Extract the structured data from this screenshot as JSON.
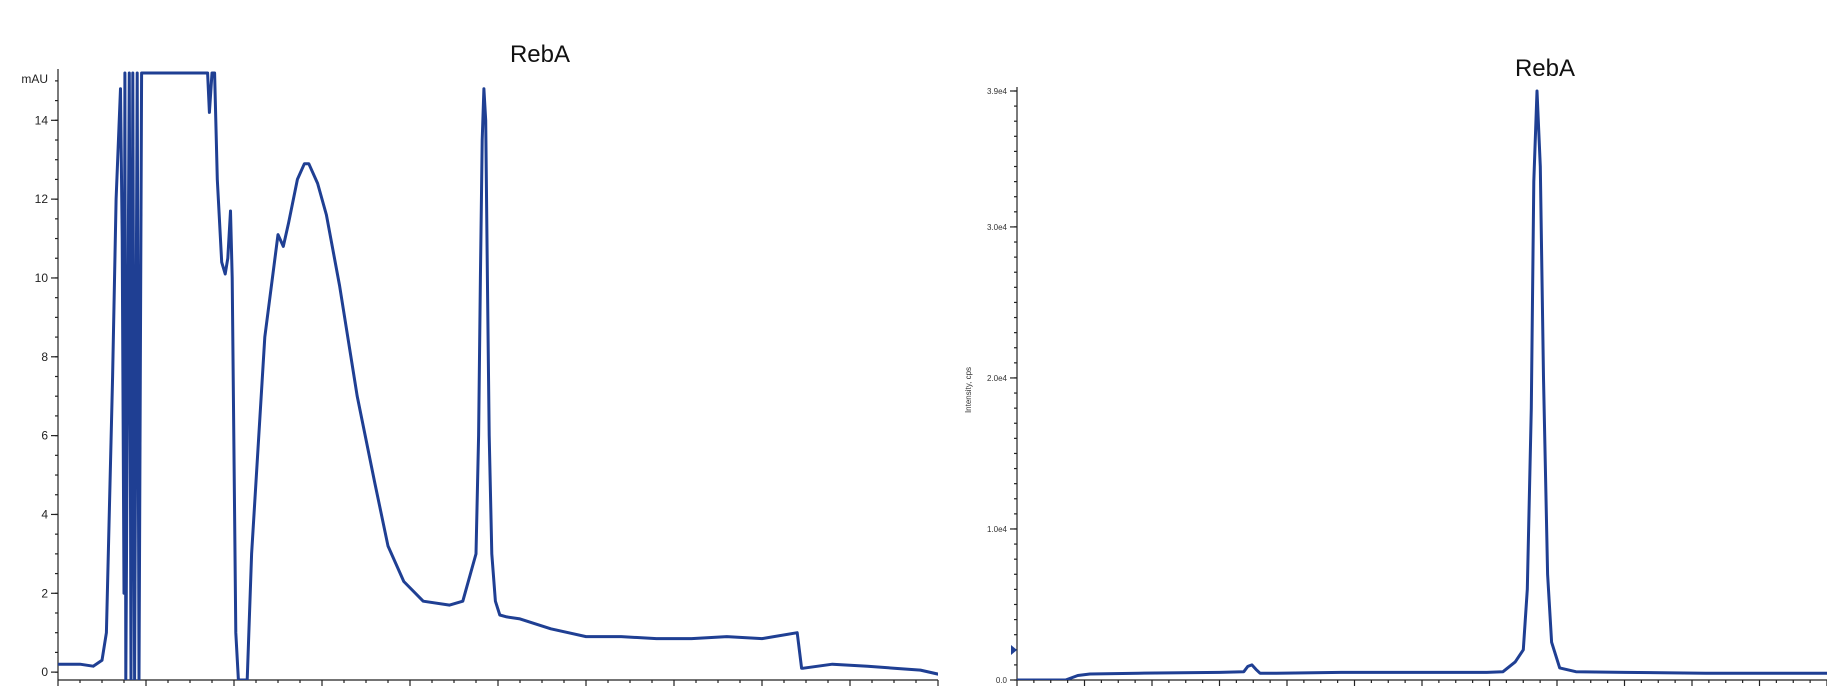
{
  "colors": {
    "trace": "#1f3f93",
    "axis": "#222222"
  },
  "chart_data": [
    {
      "type": "line",
      "title": "",
      "annotation": "RebA",
      "y_unit_label": "mAU",
      "xlabel": "",
      "ylabel": "",
      "ylim": [
        -0.2,
        15.2
      ],
      "xlim": [
        0,
        1
      ],
      "y_ticks": [
        0,
        2,
        4,
        6,
        8,
        10,
        12,
        14
      ],
      "y_tick_labels": [
        "0",
        "2",
        "4",
        "6",
        "8",
        "10",
        "12",
        "14"
      ],
      "grid": false,
      "legend": "none",
      "series": [
        {
          "x": [
            0.0,
            0.025,
            0.04,
            0.05,
            0.055,
            0.062,
            0.066,
            0.071,
            0.073,
            0.075,
            0.076,
            0.077,
            0.081,
            0.083,
            0.085,
            0.087,
            0.09,
            0.092,
            0.095,
            0.17,
            0.172,
            0.175,
            0.178,
            0.181,
            0.186,
            0.19,
            0.193,
            0.196,
            0.198,
            0.202,
            0.205,
            0.215,
            0.22,
            0.235,
            0.25,
            0.256,
            0.262,
            0.272,
            0.28,
            0.285,
            0.295,
            0.305,
            0.32,
            0.34,
            0.36,
            0.375,
            0.393,
            0.415,
            0.445,
            0.46,
            0.475,
            0.478,
            0.48,
            0.482,
            0.484,
            0.486,
            0.488,
            0.49,
            0.493,
            0.497,
            0.502,
            0.51,
            0.525,
            0.56,
            0.6,
            0.64,
            0.68,
            0.72,
            0.76,
            0.8,
            0.84,
            0.845,
            0.847,
            0.88,
            0.92,
            0.95,
            0.98,
            1.0
          ],
          "y": [
            0.2,
            0.2,
            0.15,
            0.3,
            1.0,
            7.5,
            12.0,
            14.8,
            11.0,
            2.0,
            15.2,
            -0.2,
            15.2,
            -0.2,
            15.2,
            -0.2,
            15.2,
            -0.2,
            15.2,
            15.2,
            14.2,
            15.2,
            15.2,
            12.5,
            10.4,
            10.1,
            10.5,
            11.7,
            10.0,
            1.0,
            -0.2,
            -0.2,
            3.0,
            8.5,
            11.1,
            10.8,
            11.4,
            12.5,
            12.9,
            12.9,
            12.4,
            11.6,
            9.8,
            7.0,
            4.8,
            3.2,
            2.3,
            1.8,
            1.7,
            1.8,
            3.0,
            6.0,
            10.0,
            13.5,
            14.8,
            14.0,
            10.0,
            6.0,
            3.0,
            1.8,
            1.45,
            1.4,
            1.35,
            1.1,
            0.9,
            0.9,
            0.85,
            0.85,
            0.9,
            0.85,
            1.0,
            0.1,
            0.1,
            0.2,
            0.15,
            0.1,
            0.05,
            -0.05
          ]
        }
      ]
    },
    {
      "type": "line",
      "title": "",
      "annotation": "RebA",
      "xlabel": "",
      "ylabel": "Intensity, cps",
      "ylim": [
        0,
        39000
      ],
      "xlim": [
        0,
        1
      ],
      "y_ticks": [
        0,
        10000,
        20000,
        30000,
        39000
      ],
      "y_tick_labels": [
        "0.0",
        "1.0e4",
        "2.0e4",
        "3.0e4",
        "3.9e4"
      ],
      "grid": false,
      "legend": "none",
      "series": [
        {
          "x": [
            0.0,
            0.06,
            0.075,
            0.09,
            0.15,
            0.25,
            0.28,
            0.285,
            0.29,
            0.295,
            0.3,
            0.32,
            0.4,
            0.5,
            0.58,
            0.6,
            0.615,
            0.625,
            0.63,
            0.635,
            0.638,
            0.642,
            0.646,
            0.65,
            0.655,
            0.66,
            0.67,
            0.69,
            0.75,
            0.85,
            0.95,
            1.0
          ],
          "y": [
            0,
            0,
            300,
            400,
            450,
            500,
            550,
            900,
            1000,
            700,
            450,
            450,
            500,
            500,
            500,
            550,
            1200,
            2000,
            6000,
            18000,
            33000,
            39000,
            34000,
            20000,
            7000,
            2500,
            800,
            550,
            500,
            450,
            450,
            450
          ]
        }
      ]
    }
  ]
}
